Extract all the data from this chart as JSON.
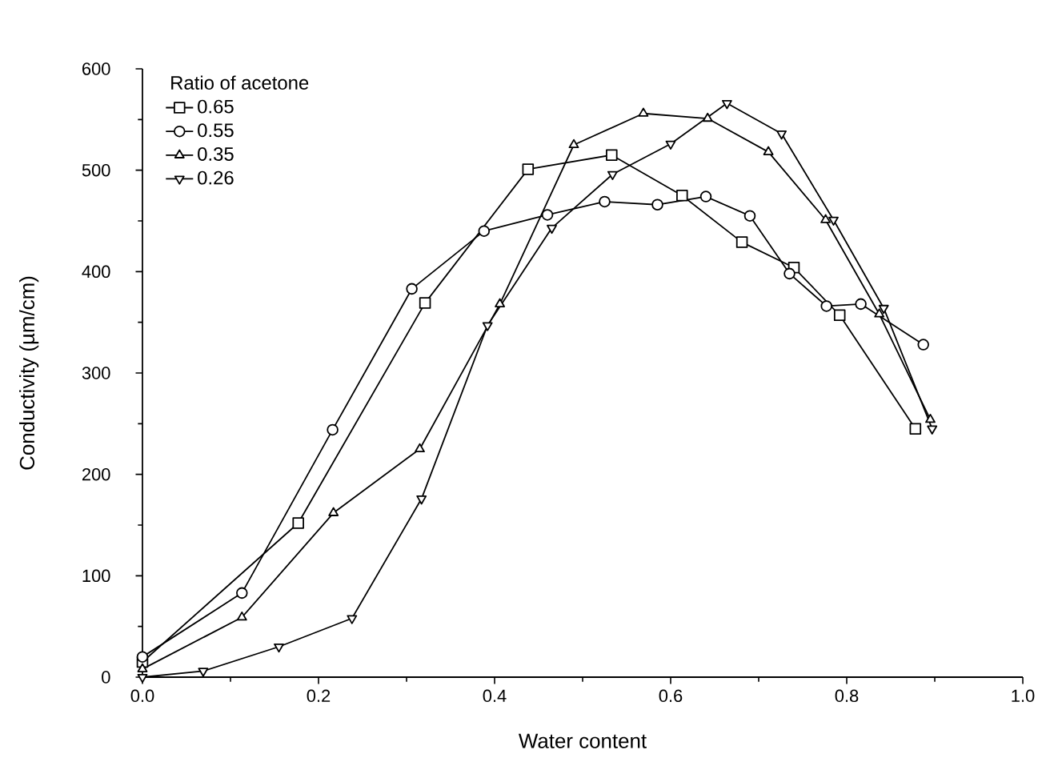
{
  "chart_data": {
    "type": "line",
    "xlabel": "Water content",
    "ylabel": "Conductivity (µm/cm)",
    "legend_title": "Ratio of acetone",
    "legend": "top left",
    "xlim": [
      0,
      1.0
    ],
    "ylim": [
      0,
      600
    ],
    "xticks": [
      {
        "value": 0,
        "label": "0.0"
      },
      {
        "value": 0.2,
        "label": "0.2"
      },
      {
        "value": 0.4,
        "label": "0.4"
      },
      {
        "value": 0.6,
        "label": "0.6"
      },
      {
        "value": 0.8,
        "label": "0.8"
      },
      {
        "value": 1.0,
        "label": "1.0"
      }
    ],
    "yticks": [
      0,
      100,
      200,
      300,
      400,
      500,
      600
    ],
    "series": [
      {
        "name": "0.65",
        "color": "#000000",
        "marker": "square",
        "x": [
          0,
          0.177,
          0.321,
          0.438,
          0.533,
          0.613,
          0.681,
          0.74,
          0.792,
          0.878
        ],
        "values": [
          15,
          152,
          369,
          501,
          515,
          475,
          429,
          404,
          357,
          245
        ]
      },
      {
        "name": "0.55",
        "color": "#000000",
        "marker": "circle",
        "x": [
          0,
          0.113,
          0.216,
          0.306,
          0.388,
          0.46,
          0.525,
          0.585,
          0.64,
          0.69,
          0.735,
          0.777,
          0.816,
          0.887
        ],
        "values": [
          20,
          83,
          244,
          383,
          440,
          456,
          469,
          466,
          474,
          455,
          398,
          366,
          368,
          328
        ]
      },
      {
        "name": "0.35",
        "color": "#000000",
        "marker": "triangle",
        "x": [
          0,
          0.113,
          0.217,
          0.315,
          0.406,
          0.49,
          0.569,
          0.642,
          0.711,
          0.776,
          0.837,
          0.895
        ],
        "values": [
          8,
          59,
          162,
          225,
          368,
          525,
          556,
          551,
          518,
          451,
          358,
          254
        ]
      },
      {
        "name": "0.26",
        "color": "#000000",
        "marker": "triangle down",
        "x": [
          0,
          0.069,
          0.155,
          0.238,
          0.317,
          0.392,
          0.465,
          0.534,
          0.6,
          0.664,
          0.726,
          0.785,
          0.842,
          0.897
        ],
        "values": [
          0,
          6,
          30,
          58,
          176,
          347,
          443,
          496,
          526,
          566,
          536,
          451,
          364,
          245
        ]
      }
    ]
  }
}
